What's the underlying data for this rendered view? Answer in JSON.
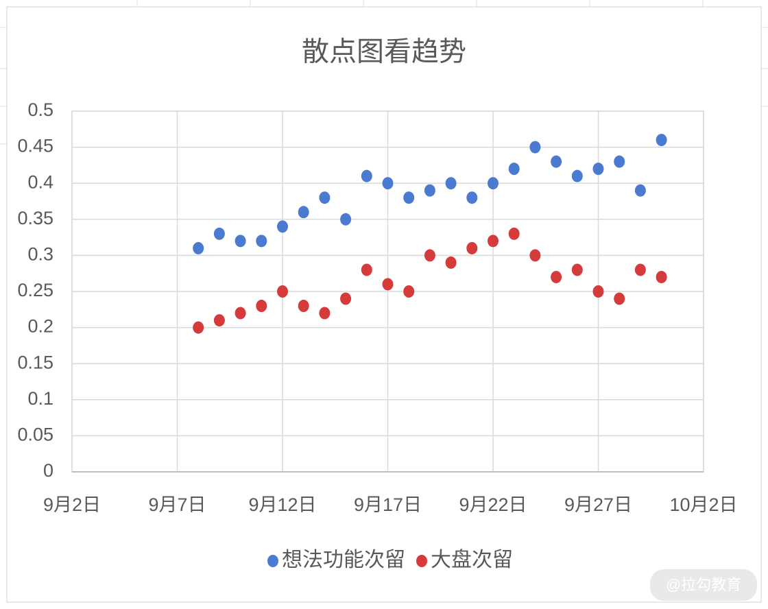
{
  "chart_data": {
    "type": "scatter",
    "title": "散点图看趋势",
    "x": [
      "9月8日",
      "9月9日",
      "9月10日",
      "9月11日",
      "9月12日",
      "9月13日",
      "9月14日",
      "9月15日",
      "9月16日",
      "9月17日",
      "9月18日",
      "9月19日",
      "9月20日",
      "9月21日",
      "9月22日",
      "9月23日",
      "9月24日",
      "9月25日",
      "9月26日",
      "9月27日",
      "9月28日",
      "9月29日",
      "9月30日"
    ],
    "series": [
      {
        "name": "想法功能次留",
        "color": "#4a7bd0",
        "values": [
          0.31,
          0.33,
          0.32,
          0.32,
          0.34,
          0.36,
          0.38,
          0.35,
          0.41,
          0.4,
          0.38,
          0.39,
          0.4,
          0.38,
          0.4,
          0.42,
          0.45,
          0.43,
          0.41,
          0.42,
          0.43,
          0.39,
          0.46
        ]
      },
      {
        "name": "大盘次留",
        "color": "#d63b3b",
        "values": [
          0.2,
          0.21,
          0.22,
          0.23,
          0.25,
          0.23,
          0.22,
          0.24,
          0.28,
          0.26,
          0.25,
          0.3,
          0.29,
          0.31,
          0.32,
          0.33,
          0.3,
          0.27,
          0.28,
          0.25,
          0.24,
          0.28,
          0.27
        ]
      }
    ],
    "xlim": [
      "9月2日",
      "10月2日"
    ],
    "xticks": [
      "9月2日",
      "9月7日",
      "9月12日",
      "9月17日",
      "9月22日",
      "9月27日",
      "10月2日"
    ],
    "ylim": [
      0,
      0.5
    ],
    "yticks": [
      0,
      0.05,
      0.1,
      0.15,
      0.2,
      0.25,
      0.3,
      0.35,
      0.4,
      0.45,
      0.5
    ],
    "grid": true,
    "legend": "bottom",
    "watermark": "@拉勾教育"
  }
}
